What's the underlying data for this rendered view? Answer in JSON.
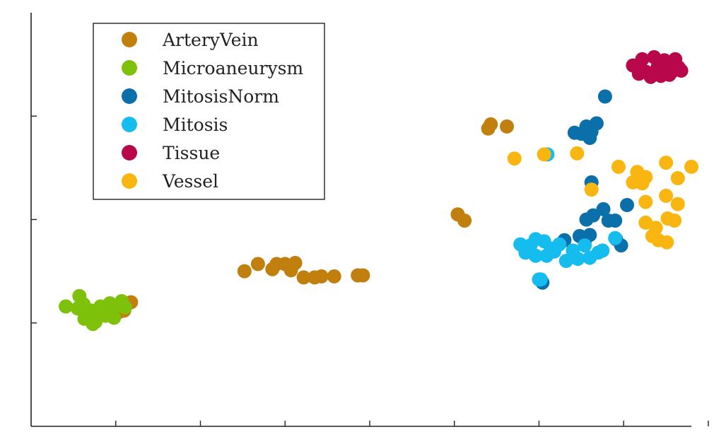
{
  "chart_data": {
    "type": "scatter",
    "title": "",
    "xlabel": "",
    "ylabel": "",
    "xlim": [
      -50,
      730
    ],
    "ylim": [
      -20,
      380
    ],
    "x_ticks": [
      50,
      150,
      250,
      350,
      450,
      550,
      650,
      750
    ],
    "y_ticks": [
      80,
      180,
      280
    ],
    "tick_labels_visible": false,
    "grid": false,
    "legend_placement": "top-left",
    "series": [
      {
        "name": "ArteryVein",
        "color": "#C17F0E",
        "points": [
          [
            202,
            130
          ],
          [
            218,
            137
          ],
          [
            240,
            137
          ],
          [
            250,
            137
          ],
          [
            262,
            138
          ],
          [
            257,
            131
          ],
          [
            235,
            132
          ],
          [
            272,
            124
          ],
          [
            285,
            124
          ],
          [
            293,
            125
          ],
          [
            308,
            125
          ],
          [
            336,
            126
          ],
          [
            342,
            126
          ],
          [
            454,
            185
          ],
          [
            462,
            179
          ],
          [
            490,
            268
          ],
          [
            493,
            272
          ],
          [
            512,
            270
          ],
          [
            55,
            91
          ],
          [
            60,
            92
          ],
          [
            68,
            100
          ]
        ]
      },
      {
        "name": "Microaneurysm",
        "color": "#7DC10B",
        "points": [
          [
            -9,
            96
          ],
          [
            7,
            106
          ],
          [
            12,
            98
          ],
          [
            5,
            94
          ],
          [
            21,
            92
          ],
          [
            28,
            86
          ],
          [
            23,
            79
          ],
          [
            13,
            84
          ],
          [
            17,
            90
          ],
          [
            32,
            96
          ],
          [
            43,
            99
          ],
          [
            52,
            97
          ],
          [
            57,
            101
          ],
          [
            61,
            95
          ],
          [
            45,
            90
          ],
          [
            38,
            87
          ],
          [
            48,
            85
          ],
          [
            36,
            93
          ],
          [
            26,
            81
          ]
        ]
      },
      {
        "name": "MitosisNorm",
        "color": "#0B6FAA",
        "points": [
          [
            628,
            299
          ],
          [
            592,
            264
          ],
          [
            600,
            263
          ],
          [
            606,
            270
          ],
          [
            612,
            265
          ],
          [
            610,
            259
          ],
          [
            618,
            273
          ],
          [
            612,
            216
          ],
          [
            598,
            164
          ],
          [
            610,
            165
          ],
          [
            604,
            159
          ],
          [
            606,
            180
          ],
          [
            626,
            190
          ],
          [
            640,
            179
          ],
          [
            614,
            184
          ],
          [
            632,
            179
          ],
          [
            641,
            161
          ],
          [
            647,
            155
          ],
          [
            654,
            194
          ],
          [
            554,
            119
          ],
          [
            580,
            160
          ]
        ]
      },
      {
        "name": "Mitosis",
        "color": "#14BDEE",
        "points": [
          [
            540,
            155
          ],
          [
            546,
            161
          ],
          [
            556,
            159
          ],
          [
            574,
            156
          ],
          [
            564,
            152
          ],
          [
            528,
            156
          ],
          [
            534,
            148
          ],
          [
            546,
            145
          ],
          [
            568,
            149
          ],
          [
            559,
            145
          ],
          [
            582,
            140
          ],
          [
            590,
            150
          ],
          [
            596,
            142
          ],
          [
            610,
            143
          ],
          [
            620,
            148
          ],
          [
            604,
            155
          ],
          [
            625,
            150
          ],
          [
            550,
            122
          ],
          [
            560,
            243
          ],
          [
            640,
            162
          ],
          [
            552,
            122
          ]
        ]
      },
      {
        "name": "Tissue",
        "color": "#B8074A",
        "points": [
          [
            661,
            329
          ],
          [
            672,
            335
          ],
          [
            686,
            337
          ],
          [
            700,
            331
          ],
          [
            711,
            335
          ],
          [
            718,
            324
          ],
          [
            704,
            320
          ],
          [
            690,
            327
          ],
          [
            676,
            323
          ],
          [
            668,
            321
          ],
          [
            682,
            318
          ],
          [
            694,
            319
          ],
          [
            707,
            323
          ],
          [
            715,
            327
          ],
          [
            698,
            334
          ],
          [
            665,
            328
          ]
        ]
      },
      {
        "name": "Vessel",
        "color": "#F9B611",
        "points": [
          [
            521,
            239
          ],
          [
            556,
            243
          ],
          [
            595,
            244
          ],
          [
            644,
            231
          ],
          [
            666,
            226
          ],
          [
            700,
            235
          ],
          [
            730,
            231
          ],
          [
            661,
            216
          ],
          [
            672,
            215
          ],
          [
            676,
            221
          ],
          [
            714,
            220
          ],
          [
            612,
            209
          ],
          [
            676,
            197
          ],
          [
            700,
            203
          ],
          [
            714,
            195
          ],
          [
            702,
            181
          ],
          [
            710,
            179
          ],
          [
            688,
            172
          ],
          [
            691,
            160
          ],
          [
            676,
            177
          ],
          [
            684,
            164
          ],
          [
            701,
            158
          ]
        ]
      }
    ]
  }
}
